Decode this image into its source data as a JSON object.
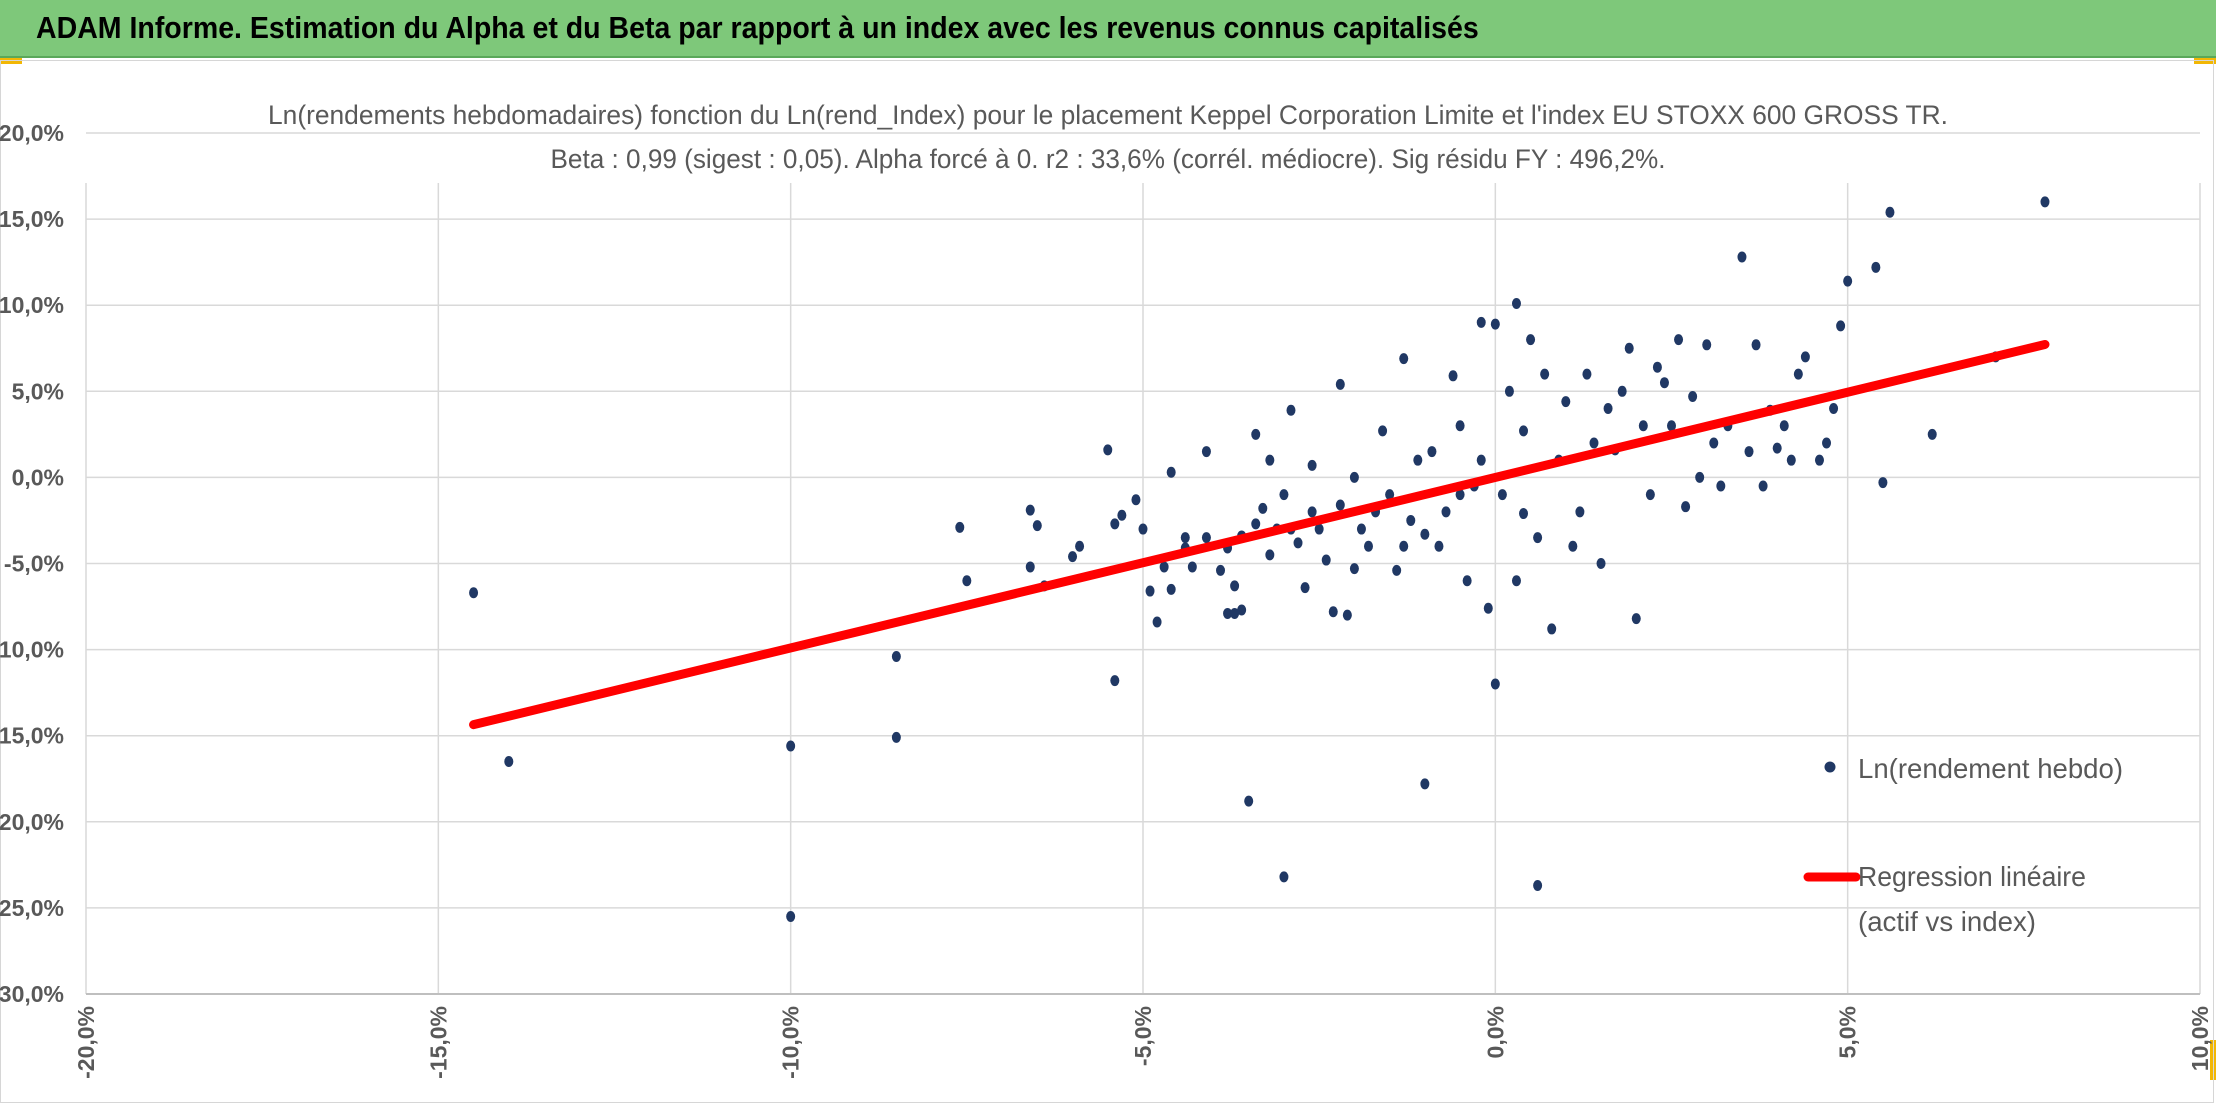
{
  "header": {
    "title": "ADAM Informe. Estimation du Alpha et du Beta par rapport à un index avec les revenus connus capitalisés"
  },
  "colors": {
    "header_bg": "#7ec87a",
    "corner_accent": "#f2b705",
    "points": "#203864",
    "regression": "#ff0000",
    "grid": "#d9d9d9",
    "text": "#595959"
  },
  "chart_data": {
    "type": "scatter",
    "title_line1": "Ln(rendements hebdomadaires) fonction du Ln(rend_Index) pour le placement Keppel Corporation Limite et l'index EU STOXX 600 GROSS TR.",
    "title_line2": "Beta : 0,99 (sigest : 0,05). Alpha forcé à 0. r2 : 33,6% (corrél. médiocre). Sig résidu FY : 496,2%.",
    "xlim": [
      -0.2,
      0.1
    ],
    "ylim": [
      -0.3,
      0.2
    ],
    "x_ticks": [
      -0.2,
      -0.15,
      -0.1,
      -0.05,
      0.0,
      0.05,
      0.1
    ],
    "x_tick_labels": [
      "-20,0%",
      "-15,0%",
      "-10,0%",
      "-5,0%",
      "0,0%",
      "5,0%",
      "10,0%"
    ],
    "y_ticks": [
      0.2,
      0.15,
      0.1,
      0.05,
      0.0,
      -0.05,
      -0.1,
      -0.15,
      -0.2,
      -0.25,
      -0.3
    ],
    "y_tick_labels": [
      "20,0%",
      "15,0%",
      "10,0%",
      "5,0%",
      "0,0%",
      "-5,0%",
      "-10,0%",
      "-15,0%",
      "-20,0%",
      "-25,0%",
      "-30,0%"
    ],
    "grid": true,
    "legend_position": "right",
    "series": [
      {
        "name": "Ln(rendement hebdo)",
        "kind": "scatter",
        "points": [
          [
            -0.145,
            -0.067
          ],
          [
            -0.14,
            -0.165
          ],
          [
            -0.1,
            -0.156
          ],
          [
            -0.1,
            -0.255
          ],
          [
            -0.085,
            -0.104
          ],
          [
            -0.085,
            -0.151
          ],
          [
            -0.076,
            -0.029
          ],
          [
            -0.075,
            -0.06
          ],
          [
            -0.066,
            -0.052
          ],
          [
            -0.066,
            -0.019
          ],
          [
            -0.065,
            -0.028
          ],
          [
            -0.064,
            -0.063
          ],
          [
            -0.06,
            -0.046
          ],
          [
            -0.059,
            -0.04
          ],
          [
            -0.055,
            0.016
          ],
          [
            -0.054,
            -0.027
          ],
          [
            -0.053,
            -0.022
          ],
          [
            -0.05,
            -0.03
          ],
          [
            -0.054,
            -0.118
          ],
          [
            -0.051,
            -0.013
          ],
          [
            -0.049,
            -0.066
          ],
          [
            -0.048,
            -0.084
          ],
          [
            -0.047,
            -0.052
          ],
          [
            -0.046,
            -0.065
          ],
          [
            -0.046,
            0.003
          ],
          [
            -0.044,
            -0.035
          ],
          [
            -0.044,
            -0.041
          ],
          [
            -0.043,
            -0.052
          ],
          [
            -0.041,
            -0.035
          ],
          [
            -0.041,
            0.015
          ],
          [
            -0.039,
            -0.054
          ],
          [
            -0.038,
            -0.079
          ],
          [
            -0.038,
            -0.041
          ],
          [
            -0.037,
            -0.063
          ],
          [
            -0.037,
            -0.079
          ],
          [
            -0.036,
            -0.077
          ],
          [
            -0.036,
            -0.034
          ],
          [
            -0.035,
            -0.188
          ],
          [
            -0.034,
            -0.027
          ],
          [
            -0.034,
            0.025
          ],
          [
            -0.033,
            -0.018
          ],
          [
            -0.032,
            0.01
          ],
          [
            -0.032,
            -0.045
          ],
          [
            -0.031,
            -0.03
          ],
          [
            -0.03,
            -0.01
          ],
          [
            -0.03,
            -0.232
          ],
          [
            -0.029,
            -0.03
          ],
          [
            -0.029,
            0.039
          ],
          [
            -0.028,
            -0.038
          ],
          [
            -0.027,
            -0.064
          ],
          [
            -0.026,
            -0.02
          ],
          [
            -0.026,
            0.007
          ],
          [
            -0.025,
            -0.03
          ],
          [
            -0.024,
            -0.048
          ],
          [
            -0.023,
            -0.078
          ],
          [
            -0.022,
            -0.016
          ],
          [
            -0.022,
            0.054
          ],
          [
            -0.021,
            -0.08
          ],
          [
            -0.02,
            0.0
          ],
          [
            -0.02,
            -0.053
          ],
          [
            -0.019,
            -0.03
          ],
          [
            -0.018,
            -0.04
          ],
          [
            -0.017,
            -0.02
          ],
          [
            -0.016,
            0.027
          ],
          [
            -0.015,
            -0.01
          ],
          [
            -0.014,
            -0.054
          ],
          [
            -0.013,
            -0.04
          ],
          [
            -0.013,
            0.069
          ],
          [
            -0.012,
            -0.025
          ],
          [
            -0.011,
            0.01
          ],
          [
            -0.01,
            -0.033
          ],
          [
            -0.01,
            -0.178
          ],
          [
            -0.009,
            0.015
          ],
          [
            -0.008,
            -0.04
          ],
          [
            -0.007,
            -0.02
          ],
          [
            -0.006,
            0.059
          ],
          [
            -0.005,
            -0.01
          ],
          [
            -0.005,
            0.03
          ],
          [
            -0.004,
            -0.06
          ],
          [
            -0.003,
            -0.005
          ],
          [
            -0.002,
            0.01
          ],
          [
            -0.002,
            0.09
          ],
          [
            -0.001,
            -0.076
          ],
          [
            0.0,
            -0.12
          ],
          [
            0.0,
            0.089
          ],
          [
            0.001,
            -0.01
          ],
          [
            0.002,
            0.05
          ],
          [
            0.003,
            -0.06
          ],
          [
            0.003,
            0.101
          ],
          [
            0.004,
            -0.021
          ],
          [
            0.004,
            0.027
          ],
          [
            0.005,
            0.08
          ],
          [
            0.006,
            -0.035
          ],
          [
            0.006,
            -0.237
          ],
          [
            0.007,
            0.06
          ],
          [
            0.008,
            -0.088
          ],
          [
            0.009,
            0.01
          ],
          [
            0.01,
            0.044
          ],
          [
            0.011,
            -0.04
          ],
          [
            0.012,
            -0.02
          ],
          [
            0.013,
            0.06
          ],
          [
            0.014,
            0.02
          ],
          [
            0.015,
            -0.05
          ],
          [
            0.016,
            0.04
          ],
          [
            0.017,
            0.016
          ],
          [
            0.018,
            0.05
          ],
          [
            0.019,
            0.075
          ],
          [
            0.02,
            -0.082
          ],
          [
            0.021,
            0.03
          ],
          [
            0.022,
            -0.01
          ],
          [
            0.023,
            0.064
          ],
          [
            0.024,
            0.055
          ],
          [
            0.025,
            0.03
          ],
          [
            0.026,
            0.08
          ],
          [
            0.027,
            -0.017
          ],
          [
            0.028,
            0.047
          ],
          [
            0.029,
            0.0
          ],
          [
            0.03,
            0.077
          ],
          [
            0.031,
            0.02
          ],
          [
            0.032,
            -0.005
          ],
          [
            0.033,
            0.03
          ],
          [
            0.035,
            0.128
          ],
          [
            0.036,
            0.015
          ],
          [
            0.037,
            0.077
          ],
          [
            0.038,
            -0.005
          ],
          [
            0.039,
            0.039
          ],
          [
            0.04,
            0.017
          ],
          [
            0.041,
            0.03
          ],
          [
            0.042,
            0.01
          ],
          [
            0.043,
            0.06
          ],
          [
            0.044,
            0.07
          ],
          [
            0.046,
            0.01
          ],
          [
            0.047,
            0.02
          ],
          [
            0.048,
            0.04
          ],
          [
            0.049,
            0.088
          ],
          [
            0.05,
            0.114
          ],
          [
            0.054,
            0.122
          ],
          [
            0.055,
            -0.003
          ],
          [
            0.056,
            0.154
          ],
          [
            0.062,
            0.025
          ],
          [
            0.071,
            0.07
          ],
          [
            0.078,
            0.16
          ]
        ]
      },
      {
        "name": "Regression linéaire (actif vs index)",
        "kind": "line",
        "legend_lines": [
          "Regression linéaire",
          "(actif vs index)"
        ],
        "x": [
          -0.145,
          0.078
        ],
        "y": [
          -0.1436,
          0.0772
        ]
      }
    ]
  }
}
